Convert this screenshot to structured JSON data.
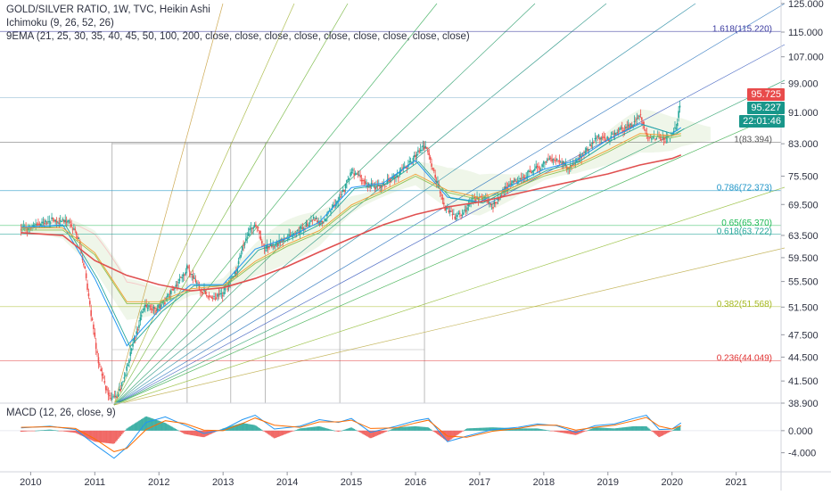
{
  "legend": {
    "title": "GOLD/SILVER RATIO, 1W, TVC, Heikin Ashi",
    "ichimoku": "Ichimoku (9, 26, 52, 26)",
    "ema": "9EMA (21, 25, 30, 35, 40, 45, 50, 100, 200, close, close, close, close, close, close, close, close, close)",
    "macd": "MACD (12, 26, close, 9)"
  },
  "price_tags": {
    "last": "95.725",
    "second": "95.227",
    "timer": "22:01:46",
    "last_color": "#e84b4b",
    "second_color": "#18968a",
    "timer_color": "#18968a"
  },
  "chart_data": [
    {
      "type": "candlestick",
      "title": "GOLD/SILVER RATIO, 1W, TVC, Heikin Ashi",
      "x_ticks": [
        "2010",
        "2011",
        "2012",
        "2013",
        "2014",
        "2015",
        "2016",
        "2017",
        "2018",
        "2019",
        "2020",
        "2021"
      ],
      "y_ticks": [
        "125.000",
        "115.000",
        "107.000",
        "99.000",
        "91.000",
        "83.000",
        "75.500",
        "69.500",
        "63.500",
        "59.500",
        "55.500",
        "51.500",
        "47.500",
        "44.500",
        "41.500",
        "38.900"
      ],
      "ylim": [
        38.9,
        125
      ],
      "y_scale": "log",
      "colors": {
        "up": "#26a69a",
        "down": "#ef5350",
        "ema200": "#e05050",
        "fib_0786": "#2196c8",
        "fib_0618": "#26a69a",
        "fib_065": "#1db954",
        "fib_0382": "#a5b820",
        "fib_0236": "#e03030",
        "fib_1618": "#3c3ca0",
        "fib_1": "#555555"
      },
      "fib_levels": [
        {
          "label": "1.618(115.220)",
          "value": 115.22,
          "color": "#3c3ca0"
        },
        {
          "label": "1(83.394)",
          "value": 83.394,
          "color": "#555555"
        },
        {
          "label": "0.786(72.373)",
          "value": 72.373,
          "color": "#2196c8"
        },
        {
          "label": "0.65(65.370)",
          "value": 65.37,
          "color": "#1db954"
        },
        {
          "label": "0.618(63.722)",
          "value": 63.722,
          "color": "#26a69a"
        },
        {
          "label": "0.382(51.568)",
          "value": 51.568,
          "color": "#a5b820"
        },
        {
          "label": "0.236(44.049)",
          "value": 44.049,
          "color": "#e03030"
        }
      ],
      "close_path": [
        [
          2009.85,
          64.5
        ],
        [
          2010.0,
          65.0
        ],
        [
          2010.2,
          66.0
        ],
        [
          2010.4,
          66.5
        ],
        [
          2010.6,
          66.0
        ],
        [
          2010.75,
          63.0
        ],
        [
          2010.85,
          57.0
        ],
        [
          2010.95,
          50.0
        ],
        [
          2011.05,
          44.0
        ],
        [
          2011.2,
          40.0
        ],
        [
          2011.3,
          39.5
        ],
        [
          2011.4,
          40.5
        ],
        [
          2011.5,
          43.0
        ],
        [
          2011.65,
          48.0
        ],
        [
          2011.8,
          52.0
        ],
        [
          2011.95,
          51.0
        ],
        [
          2012.1,
          52.5
        ],
        [
          2012.3,
          55.0
        ],
        [
          2012.45,
          58.0
        ],
        [
          2012.6,
          55.0
        ],
        [
          2012.8,
          53.0
        ],
        [
          2013.0,
          53.5
        ],
        [
          2013.2,
          57.0
        ],
        [
          2013.35,
          63.0
        ],
        [
          2013.5,
          66.0
        ],
        [
          2013.65,
          61.0
        ],
        [
          2013.85,
          62.0
        ],
        [
          2014.0,
          63.0
        ],
        [
          2014.2,
          64.5
        ],
        [
          2014.4,
          66.5
        ],
        [
          2014.55,
          66.0
        ],
        [
          2014.75,
          69.5
        ],
        [
          2014.9,
          73.0
        ],
        [
          2015.0,
          77.0
        ],
        [
          2015.2,
          74.0
        ],
        [
          2015.4,
          73.0
        ],
        [
          2015.55,
          74.0
        ],
        [
          2015.75,
          76.0
        ],
        [
          2015.95,
          79.0
        ],
        [
          2016.05,
          81.0
        ],
        [
          2016.15,
          82.5
        ],
        [
          2016.3,
          76.0
        ],
        [
          2016.45,
          69.0
        ],
        [
          2016.6,
          67.0
        ],
        [
          2016.75,
          68.0
        ],
        [
          2016.9,
          70.5
        ],
        [
          2017.05,
          71.0
        ],
        [
          2017.2,
          69.0
        ],
        [
          2017.35,
          72.0
        ],
        [
          2017.5,
          74.0
        ],
        [
          2017.65,
          75.0
        ],
        [
          2017.8,
          76.5
        ],
        [
          2017.95,
          77.5
        ],
        [
          2018.1,
          79.5
        ],
        [
          2018.25,
          79.0
        ],
        [
          2018.4,
          77.0
        ],
        [
          2018.55,
          79.5
        ],
        [
          2018.7,
          82.0
        ],
        [
          2018.85,
          84.5
        ],
        [
          2019.0,
          84.0
        ],
        [
          2019.15,
          86.0
        ],
        [
          2019.3,
          87.0
        ],
        [
          2019.42,
          88.0
        ],
        [
          2019.5,
          91.0
        ],
        [
          2019.58,
          86.0
        ],
        [
          2019.68,
          84.0
        ],
        [
          2019.78,
          85.0
        ],
        [
          2019.9,
          84.0
        ],
        [
          2020.0,
          85.5
        ],
        [
          2020.08,
          87.5
        ],
        [
          2020.14,
          95.7
        ]
      ],
      "ema200_path": [
        [
          2009.85,
          64.0
        ],
        [
          2010.5,
          63.5
        ],
        [
          2011.0,
          59.0
        ],
        [
          2011.5,
          56.5
        ],
        [
          2012.0,
          55.0
        ],
        [
          2012.5,
          54.0
        ],
        [
          2013.0,
          54.5
        ],
        [
          2013.5,
          56.0
        ],
        [
          2014.0,
          58.0
        ],
        [
          2014.5,
          60.5
        ],
        [
          2015.0,
          63.0
        ],
        [
          2015.5,
          65.5
        ],
        [
          2016.0,
          67.5
        ],
        [
          2016.5,
          69.0
        ],
        [
          2017.0,
          70.0
        ],
        [
          2017.5,
          71.5
        ],
        [
          2018.0,
          73.0
        ],
        [
          2018.5,
          74.5
        ],
        [
          2019.0,
          76.0
        ],
        [
          2019.5,
          78.0
        ],
        [
          2020.0,
          79.5
        ],
        [
          2020.14,
          80.3
        ]
      ],
      "ema_fast_path": [
        [
          2009.85,
          65.0
        ],
        [
          2010.5,
          65.5
        ],
        [
          2011.0,
          56.0
        ],
        [
          2011.5,
          46.0
        ],
        [
          2012.0,
          51.0
        ],
        [
          2012.5,
          55.0
        ],
        [
          2013.0,
          55.0
        ],
        [
          2013.5,
          61.0
        ],
        [
          2014.0,
          63.0
        ],
        [
          2014.5,
          66.0
        ],
        [
          2015.0,
          73.0
        ],
        [
          2015.5,
          74.0
        ],
        [
          2016.0,
          79.0
        ],
        [
          2016.5,
          71.0
        ],
        [
          2017.0,
          70.0
        ],
        [
          2017.5,
          73.5
        ],
        [
          2018.0,
          77.0
        ],
        [
          2018.5,
          79.0
        ],
        [
          2019.0,
          84.0
        ],
        [
          2019.5,
          88.0
        ],
        [
          2020.0,
          85.5
        ],
        [
          2020.14,
          87.0
        ]
      ],
      "ema_slow_path": [
        [
          2009.85,
          64.5
        ],
        [
          2010.5,
          64.5
        ],
        [
          2011.0,
          60.0
        ],
        [
          2011.5,
          52.0
        ],
        [
          2012.0,
          52.0
        ],
        [
          2012.5,
          54.0
        ],
        [
          2013.0,
          54.5
        ],
        [
          2013.5,
          58.5
        ],
        [
          2014.0,
          61.5
        ],
        [
          2014.5,
          64.0
        ],
        [
          2015.0,
          69.0
        ],
        [
          2015.5,
          72.0
        ],
        [
          2016.0,
          75.5
        ],
        [
          2016.5,
          72.0
        ],
        [
          2017.0,
          70.5
        ],
        [
          2017.5,
          72.5
        ],
        [
          2018.0,
          75.5
        ],
        [
          2018.5,
          77.5
        ],
        [
          2019.0,
          81.0
        ],
        [
          2019.5,
          85.0
        ],
        [
          2020.0,
          84.5
        ],
        [
          2020.14,
          85.0
        ]
      ]
    },
    {
      "type": "bar",
      "title": "MACD (12, 26, close, 9)",
      "y_ticks": [
        "0.000",
        "-4.000"
      ],
      "ylim": [
        -6,
        4.5
      ],
      "x_ticks": [
        "2010",
        "2011",
        "2012",
        "2013",
        "2014",
        "2015",
        "2016",
        "2017",
        "2018",
        "2019",
        "2020",
        "2021"
      ],
      "colors": {
        "macd": "#2196f3",
        "signal": "#ff6d00",
        "hist_up": "#26a69a",
        "hist_down": "#ef5350"
      },
      "macd_path": [
        [
          2009.85,
          0.5
        ],
        [
          2010.3,
          0.8
        ],
        [
          2010.7,
          0.2
        ],
        [
          2011.0,
          -2.5
        ],
        [
          2011.3,
          -5.0
        ],
        [
          2011.5,
          -3.0
        ],
        [
          2011.8,
          1.5
        ],
        [
          2012.1,
          2.5
        ],
        [
          2012.4,
          1.0
        ],
        [
          2012.7,
          -0.5
        ],
        [
          2013.0,
          0.2
        ],
        [
          2013.3,
          2.0
        ],
        [
          2013.5,
          2.8
        ],
        [
          2013.8,
          0.3
        ],
        [
          2014.2,
          0.8
        ],
        [
          2014.5,
          2.0
        ],
        [
          2014.8,
          1.5
        ],
        [
          2015.0,
          2.2
        ],
        [
          2015.3,
          -0.3
        ],
        [
          2015.7,
          0.8
        ],
        [
          2016.0,
          1.8
        ],
        [
          2016.2,
          2.2
        ],
        [
          2016.5,
          -2.0
        ],
        [
          2016.8,
          -1.0
        ],
        [
          2017.2,
          0.2
        ],
        [
          2017.6,
          0.6
        ],
        [
          2017.9,
          1.2
        ],
        [
          2018.2,
          0.9
        ],
        [
          2018.5,
          -0.3
        ],
        [
          2018.8,
          0.9
        ],
        [
          2019.1,
          1.2
        ],
        [
          2019.4,
          2.2
        ],
        [
          2019.6,
          2.8
        ],
        [
          2019.8,
          0.2
        ],
        [
          2020.0,
          0.3
        ],
        [
          2020.14,
          1.4
        ]
      ],
      "signal_path": [
        [
          2009.85,
          0.6
        ],
        [
          2010.3,
          0.7
        ],
        [
          2010.7,
          0.4
        ],
        [
          2011.0,
          -1.5
        ],
        [
          2011.3,
          -3.8
        ],
        [
          2011.5,
          -3.2
        ],
        [
          2011.8,
          0.2
        ],
        [
          2012.1,
          1.8
        ],
        [
          2012.4,
          1.3
        ],
        [
          2012.7,
          0.1
        ],
        [
          2013.0,
          0.0
        ],
        [
          2013.3,
          1.3
        ],
        [
          2013.5,
          2.3
        ],
        [
          2013.8,
          1.0
        ],
        [
          2014.2,
          0.6
        ],
        [
          2014.5,
          1.6
        ],
        [
          2014.8,
          1.6
        ],
        [
          2015.0,
          1.9
        ],
        [
          2015.3,
          0.4
        ],
        [
          2015.7,
          0.5
        ],
        [
          2016.0,
          1.4
        ],
        [
          2016.2,
          1.9
        ],
        [
          2016.5,
          -1.0
        ],
        [
          2016.8,
          -1.2
        ],
        [
          2017.2,
          -0.1
        ],
        [
          2017.6,
          0.4
        ],
        [
          2017.9,
          1.0
        ],
        [
          2018.2,
          1.0
        ],
        [
          2018.5,
          0.1
        ],
        [
          2018.8,
          0.6
        ],
        [
          2019.1,
          1.0
        ],
        [
          2019.4,
          1.8
        ],
        [
          2019.6,
          2.4
        ],
        [
          2019.8,
          0.8
        ],
        [
          2020.0,
          0.3
        ],
        [
          2020.14,
          0.9
        ]
      ]
    }
  ]
}
